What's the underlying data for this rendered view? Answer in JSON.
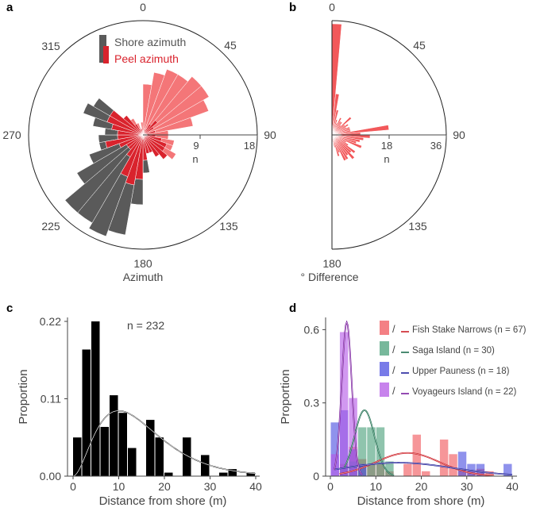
{
  "colors": {
    "shore": "#5a5a5a",
    "peel": "#d9232d",
    "peel_light": "#f2585a",
    "fsn": "#f0565b",
    "fsn_line": "#cc1f26",
    "saga": "#4aa07a",
    "saga_line": "#1e6e4f",
    "upper": "#4b4fe0",
    "upper_line": "#222299",
    "voy": "#b459e6",
    "voy_line": "#7a1e9e"
  },
  "panels": {
    "a": {
      "letter": "a"
    },
    "b": {
      "letter": "b"
    },
    "c": {
      "letter": "c"
    },
    "d": {
      "letter": "d"
    }
  },
  "chart_data": [
    {
      "panel": "a",
      "type": "polar-histogram",
      "xlabel": "Azimuth",
      "angle_ticks": [
        "0",
        "45",
        "90",
        "135",
        "180",
        "225",
        "270",
        "315"
      ],
      "radial_ticks": [
        "9",
        "18"
      ],
      "radial_unit_label": "n",
      "rmax": 18,
      "bin_width_deg": 10,
      "legend": [
        "Shore azimuth",
        "Peel azimuth"
      ],
      "series": [
        {
          "name": "Shore azimuth",
          "bin_centers_deg": [
            5,
            15,
            25,
            35,
            45,
            55,
            65,
            75,
            85,
            95,
            105,
            115,
            125,
            135,
            145,
            155,
            165,
            175,
            185,
            195,
            205,
            215,
            225,
            235,
            245,
            255,
            265,
            275,
            285,
            295,
            305,
            315,
            325,
            335,
            345,
            355
          ],
          "counts": [
            0,
            0,
            1,
            2,
            3,
            2,
            1,
            2,
            1,
            2,
            3,
            4,
            4,
            5,
            4,
            3,
            3,
            6,
            11,
            16,
            17,
            16,
            16,
            12,
            9,
            7,
            7,
            6,
            8,
            10,
            9,
            4,
            2,
            1,
            1,
            0
          ]
        },
        {
          "name": "Peel azimuth",
          "bin_centers_deg": [
            5,
            15,
            25,
            35,
            45,
            55,
            65,
            75,
            85,
            95,
            105,
            115,
            125,
            135,
            145,
            155,
            165,
            175,
            185,
            195,
            205,
            215,
            225,
            235,
            245,
            255,
            265,
            275,
            285,
            295,
            305,
            315,
            325,
            335,
            345,
            355
          ],
          "counts": [
            8,
            10,
            11,
            11,
            12,
            12,
            11,
            8,
            4,
            4,
            5,
            5,
            6,
            5,
            4,
            3,
            3,
            4,
            7,
            8,
            7,
            4,
            3,
            3,
            4,
            6,
            4,
            4,
            5,
            6,
            6,
            4,
            3,
            2,
            1,
            2
          ]
        }
      ]
    },
    {
      "panel": "b",
      "type": "polar-histogram-half",
      "xlabel": "° Difference",
      "angle_ticks": [
        "0",
        "45",
        "90",
        "135",
        "180"
      ],
      "radial_ticks": [
        "18",
        "36"
      ],
      "radial_unit_label": "n",
      "rmax": 36,
      "bin_width_deg": 5,
      "series": [
        {
          "name": "Difference",
          "bin_centers_deg": [
            2.5,
            7.5,
            12.5,
            17.5,
            22.5,
            27.5,
            32.5,
            37.5,
            42.5,
            47.5,
            52.5,
            57.5,
            62.5,
            67.5,
            72.5,
            77.5,
            82.5,
            87.5,
            92.5,
            97.5,
            102.5,
            107.5,
            112.5,
            117.5,
            122.5,
            127.5,
            132.5,
            137.5,
            142.5,
            147.5,
            152.5,
            157.5,
            162.5,
            167.5,
            172.5,
            177.5
          ],
          "counts": [
            35,
            13,
            8,
            5,
            4,
            6,
            5,
            5,
            4,
            8,
            5,
            6,
            5,
            6,
            6,
            6,
            18,
            9,
            12,
            10,
            9,
            8,
            10,
            5,
            6,
            9,
            8,
            10,
            8,
            9,
            9,
            6,
            7,
            4,
            2,
            1
          ]
        }
      ]
    },
    {
      "panel": "c",
      "type": "bar",
      "xlabel": "Distance from shore (m)",
      "ylabel": "Proportion",
      "annotation": "n = 232",
      "xlim": [
        0,
        40
      ],
      "ylim": [
        0,
        0.22
      ],
      "xticks": [
        "0",
        "10",
        "20",
        "30",
        "40"
      ],
      "yticks": [
        "0.00",
        "0.11",
        "0.22"
      ],
      "ytick_values": [
        0,
        0.11,
        0.22
      ],
      "bin_width": 2,
      "bin_left": [
        0,
        2,
        4,
        6,
        8,
        10,
        12,
        14,
        16,
        18,
        20,
        22,
        24,
        26,
        28,
        30,
        32,
        34,
        36,
        38
      ],
      "values": [
        0.055,
        0.18,
        0.22,
        0.07,
        0.115,
        0.09,
        0.04,
        0,
        0.08,
        0.055,
        0.005,
        0,
        0.055,
        0,
        0.03,
        0,
        0.005,
        0.01,
        0,
        0.005
      ],
      "fit_curve": {
        "type": "gamma-like",
        "peak_x": 10,
        "peak_y": 0.093
      }
    },
    {
      "panel": "d",
      "type": "bar",
      "xlabel": "Distance from shore (m)",
      "ylabel": "Proportion",
      "xlim": [
        0,
        40
      ],
      "ylim": [
        0,
        0.65
      ],
      "xticks": [
        "0",
        "10",
        "20",
        "30",
        "40"
      ],
      "yticks": [
        "0",
        "0.3",
        "0.6"
      ],
      "ytick_values": [
        0,
        0.3,
        0.6
      ],
      "bin_width": 2,
      "series": [
        {
          "name": "Fish Stake Narrows (n = 67)",
          "bin_left": [
            2,
            4,
            6,
            8,
            10,
            12,
            16,
            18,
            20,
            24,
            26,
            28,
            30,
            32,
            34
          ],
          "values": [
            0.05,
            0.12,
            0.07,
            0.05,
            0.05,
            0.02,
            0.05,
            0.17,
            0.02,
            0.15,
            0.09,
            0.03,
            0.02,
            0.03,
            0.02
          ]
        },
        {
          "name": "Saga Island (n = 30)",
          "bin_left": [
            2,
            4,
            6,
            8,
            10,
            12
          ],
          "values": [
            0.03,
            0.06,
            0.2,
            0.2,
            0.2,
            0.06
          ]
        },
        {
          "name": "Upper Pauness (n = 18)",
          "bin_left": [
            0,
            2,
            4,
            6,
            28,
            30,
            32,
            38
          ],
          "values": [
            0.22,
            0.27,
            0.11,
            0.05,
            0.1,
            0.05,
            0.05,
            0.05
          ]
        },
        {
          "name": "Voyageurs Island (n = 22)",
          "bin_left": [
            0,
            2,
            4
          ],
          "values": [
            0.09,
            0.59,
            0.32
          ]
        }
      ],
      "legend": [
        "Fish Stake Narrows (n = 67)",
        "Saga Island (n = 30)",
        "Upper Pauness (n = 18)",
        "Voyageurs Island (n = 22)"
      ],
      "legend_slash": "/"
    }
  ]
}
